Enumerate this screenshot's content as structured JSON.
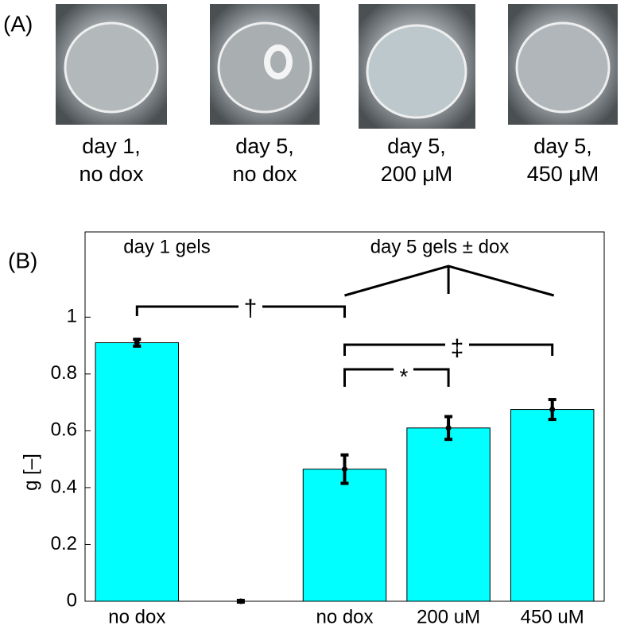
{
  "panel_labels": [
    "(A)",
    "(B)"
  ],
  "photo_captions": [
    [
      "day 1,",
      "no dox"
    ],
    [
      "day 5,",
      "no dox"
    ],
    [
      "day 5,",
      "200 μM"
    ],
    [
      "day 5,",
      "450 μM"
    ]
  ],
  "chart_data": {
    "type": "bar",
    "categories": [
      "no dox",
      null,
      "no dox",
      "200 uM",
      "450 uM"
    ],
    "values": [
      0.91,
      0,
      0.465,
      0.61,
      0.675
    ],
    "errors": [
      0.012,
      0.003,
      0.05,
      0.04,
      0.035
    ],
    "color": "#00ffff",
    "ylabel": "g [–]",
    "ylim": [
      0,
      1.3
    ],
    "yticks": [
      0,
      0.2,
      0.4,
      0.6,
      0.8,
      1
    ],
    "annotations": [
      "day 1 gels",
      "day 5 gels ± dox",
      "†",
      "‡",
      "*"
    ]
  }
}
